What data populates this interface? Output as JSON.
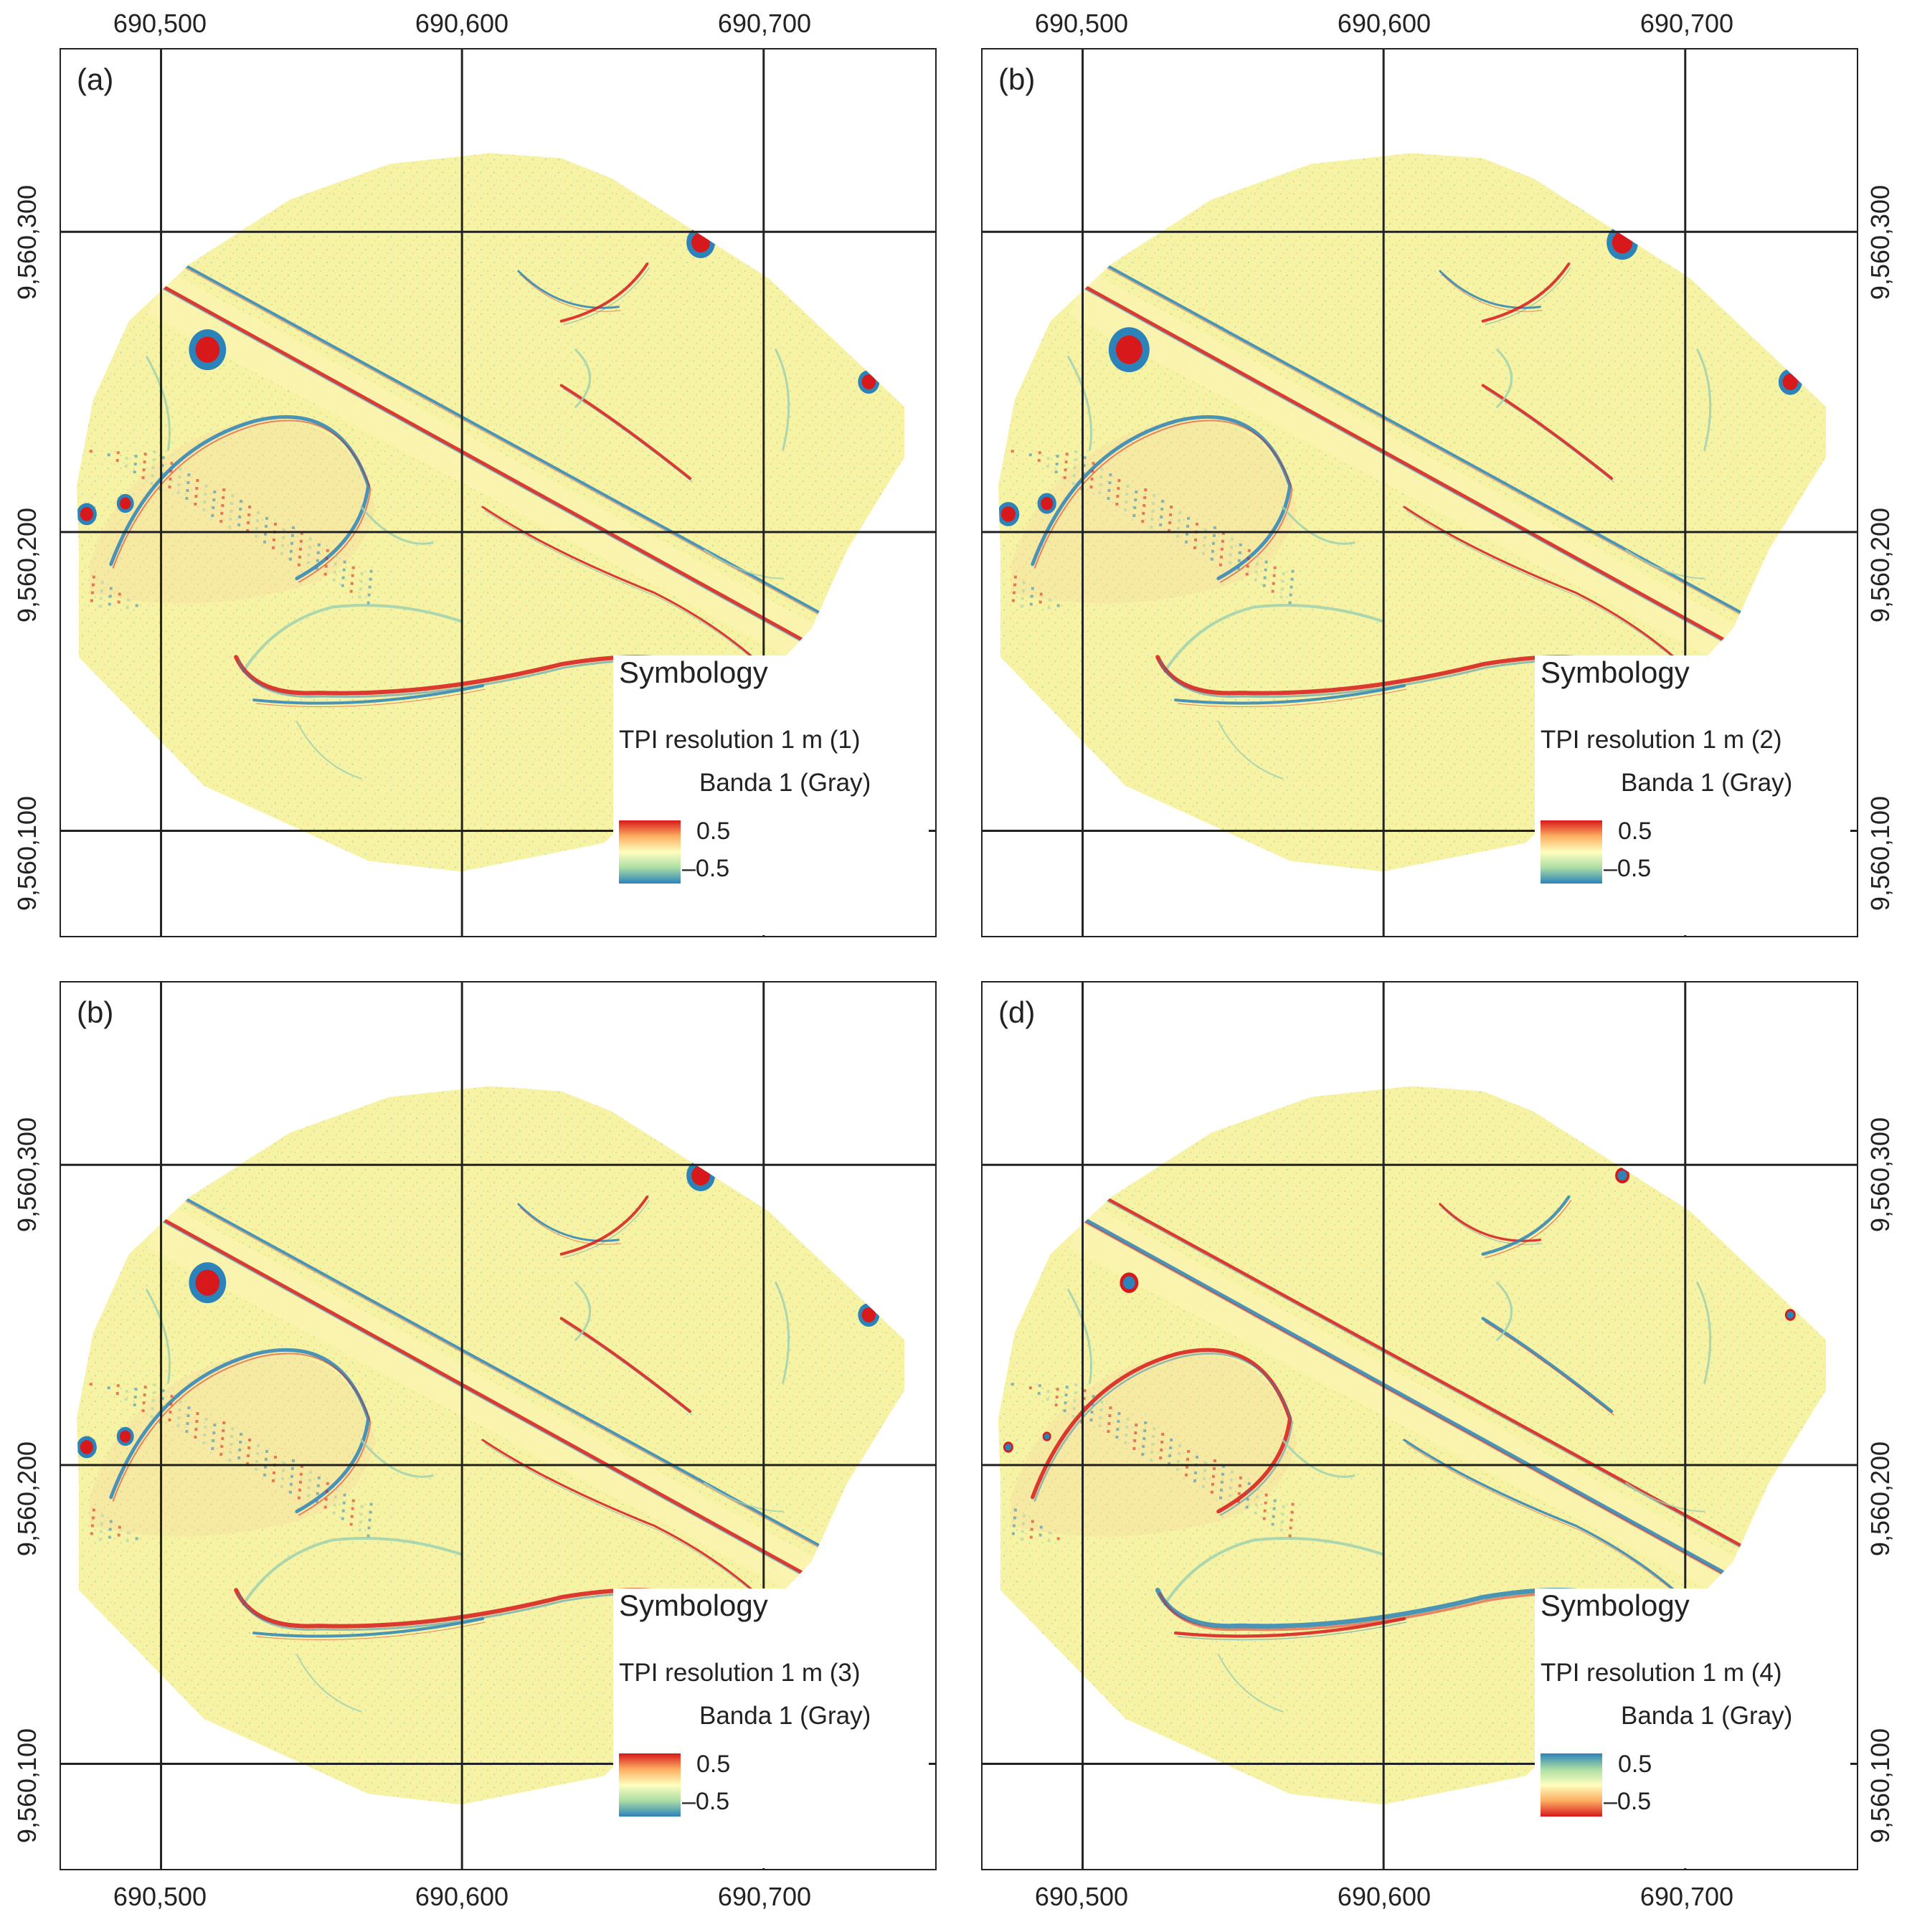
{
  "figure": {
    "x_ticks": [
      "690,500",
      "690,600",
      "690,700"
    ],
    "y_ticks": [
      "9,560,300",
      "9,560,200",
      "9,560,100"
    ],
    "panels": [
      {
        "label": "(a)",
        "legend": {
          "title": "Symbology",
          "layer": "TPI resolution 1 m (1)",
          "band": "Banda 1 (Gray)",
          "max": "0.5",
          "min": "–0.5",
          "ramp": [
            "#d7191c",
            "#fdae61",
            "#ffffbf",
            "#abdda4",
            "#2b83ba"
          ]
        }
      },
      {
        "label": "(b)",
        "legend": {
          "title": "Symbology",
          "layer": "TPI resolution 1 m (2)",
          "band": "Banda 1 (Gray)",
          "max": "0.5",
          "min": "–0.5",
          "ramp": [
            "#d7191c",
            "#fdae61",
            "#ffffbf",
            "#abdda4",
            "#2b83ba"
          ]
        }
      },
      {
        "label": "(b)",
        "legend": {
          "title": "Symbology",
          "layer": "TPI resolution 1 m (3)",
          "band": "Banda 1 (Gray)",
          "max": "0.5",
          "min": "–0.5",
          "ramp": [
            "#d7191c",
            "#fdae61",
            "#ffffbf",
            "#abdda4",
            "#2b83ba"
          ]
        }
      },
      {
        "label": "(d)",
        "legend": {
          "title": "Symbology",
          "layer": "TPI resolution 1 m (4)",
          "band": "Banda 1 (Gray)",
          "max": "0.5",
          "min": "–0.5",
          "ramp": [
            "#2b83ba",
            "#abdda4",
            "#ffffbf",
            "#fdae61",
            "#d7191c"
          ]
        }
      }
    ],
    "colors": {
      "background": "#f7f3a4",
      "positive": "#d7191c",
      "negative": "#2b83ba",
      "mid_green": "#9fd0b0",
      "grid": "#222222"
    }
  }
}
